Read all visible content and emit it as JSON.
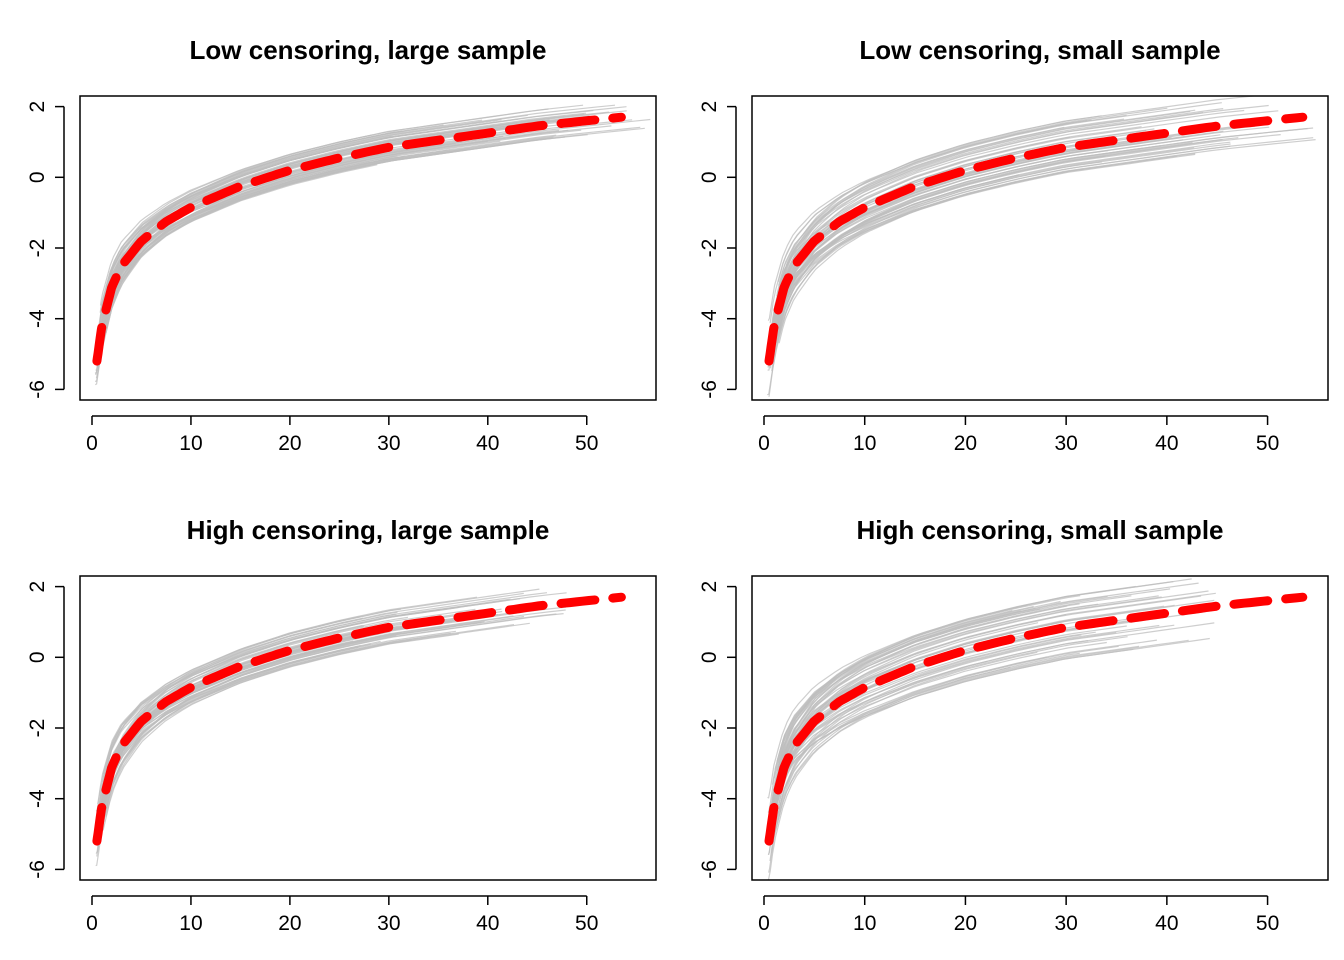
{
  "figure": {
    "panel_titles": [
      "Low censoring, large sample",
      "Low censoring, small sample",
      "High censoring, large sample",
      "High censoring, small sample"
    ]
  },
  "chart_data": [
    {
      "type": "line",
      "title": "Low censoring, large sample",
      "xlabel": "",
      "ylabel": "",
      "xlim": [
        0,
        57
      ],
      "ylim": [
        -6.3,
        2.3
      ],
      "xticks": [
        0,
        10,
        20,
        30,
        40,
        50
      ],
      "yticks": [
        -6,
        -4,
        -2,
        0,
        2
      ],
      "grid": false,
      "true_curve": {
        "color": "#ff0000",
        "style": "dashed",
        "x": [
          0.5,
          1,
          2,
          3,
          5,
          7.5,
          10,
          15,
          20,
          25,
          30,
          35,
          40,
          45,
          50,
          53.5
        ],
        "y": [
          -5.2,
          -4.2,
          -3.1,
          -2.5,
          -1.8,
          -1.25,
          -0.85,
          -0.25,
          0.2,
          0.55,
          0.85,
          1.05,
          1.25,
          1.45,
          1.6,
          1.7
        ]
      },
      "simulated_curves": {
        "color": "#bdbdbd",
        "count": 60,
        "spread": 0.45,
        "x_max_range": [
          28,
          57
        ],
        "y_end_range": [
          0.6,
          2.1
        ]
      }
    },
    {
      "type": "line",
      "title": "Low censoring, small sample",
      "xlabel": "",
      "ylabel": "",
      "xlim": [
        0,
        56
      ],
      "ylim": [
        -6.3,
        2.3
      ],
      "xticks": [
        0,
        10,
        20,
        30,
        40,
        50
      ],
      "yticks": [
        -6,
        -4,
        -2,
        0,
        2
      ],
      "grid": false,
      "true_curve": {
        "color": "#ff0000",
        "style": "dashed",
        "x": [
          0.5,
          1,
          2,
          3,
          5,
          7.5,
          10,
          15,
          20,
          25,
          30,
          35,
          40,
          45,
          50,
          53.5
        ],
        "y": [
          -5.2,
          -4.2,
          -3.1,
          -2.5,
          -1.8,
          -1.25,
          -0.85,
          -0.25,
          0.2,
          0.55,
          0.85,
          1.05,
          1.25,
          1.45,
          1.6,
          1.7
        ]
      },
      "simulated_curves": {
        "color": "#bdbdbd",
        "count": 60,
        "spread": 0.75,
        "x_max_range": [
          25,
          55
        ],
        "y_end_range": [
          0.3,
          1.9
        ]
      }
    },
    {
      "type": "line",
      "title": "High censoring, large sample",
      "xlabel": "",
      "ylabel": "",
      "xlim": [
        0,
        57
      ],
      "ylim": [
        -6.3,
        2.3
      ],
      "xticks": [
        0,
        10,
        20,
        30,
        40,
        50
      ],
      "yticks": [
        -6,
        -4,
        -2,
        0,
        2
      ],
      "grid": false,
      "true_curve": {
        "color": "#ff0000",
        "style": "dashed",
        "x": [
          0.5,
          1,
          2,
          3,
          5,
          7.5,
          10,
          15,
          20,
          25,
          30,
          35,
          40,
          45,
          50,
          53.5
        ],
        "y": [
          -5.2,
          -4.2,
          -3.1,
          -2.5,
          -1.8,
          -1.25,
          -0.85,
          -0.25,
          0.2,
          0.55,
          0.85,
          1.05,
          1.25,
          1.45,
          1.6,
          1.7
        ]
      },
      "simulated_curves": {
        "color": "#bdbdbd",
        "count": 60,
        "spread": 0.5,
        "x_max_range": [
          25,
          48
        ],
        "y_end_range": [
          0.0,
          1.8
        ]
      }
    },
    {
      "type": "line",
      "title": "High censoring, small sample",
      "xlabel": "",
      "ylabel": "",
      "xlim": [
        0,
        56
      ],
      "ylim": [
        -6.3,
        2.3
      ],
      "xticks": [
        0,
        10,
        20,
        30,
        40,
        50
      ],
      "yticks": [
        -6,
        -4,
        -2,
        0,
        2
      ],
      "grid": false,
      "true_curve": {
        "color": "#ff0000",
        "style": "dashed",
        "x": [
          0.5,
          1,
          2,
          3,
          5,
          7.5,
          10,
          15,
          20,
          25,
          30,
          35,
          40,
          45,
          50,
          53.5
        ],
        "y": [
          -5.2,
          -4.2,
          -3.1,
          -2.5,
          -1.8,
          -1.25,
          -0.85,
          -0.25,
          0.2,
          0.55,
          0.85,
          1.05,
          1.25,
          1.45,
          1.6,
          1.7
        ]
      },
      "simulated_curves": {
        "color": "#bdbdbd",
        "count": 60,
        "spread": 0.9,
        "x_max_range": [
          22,
          45
        ],
        "y_end_range": [
          -0.3,
          1.7
        ]
      }
    }
  ]
}
